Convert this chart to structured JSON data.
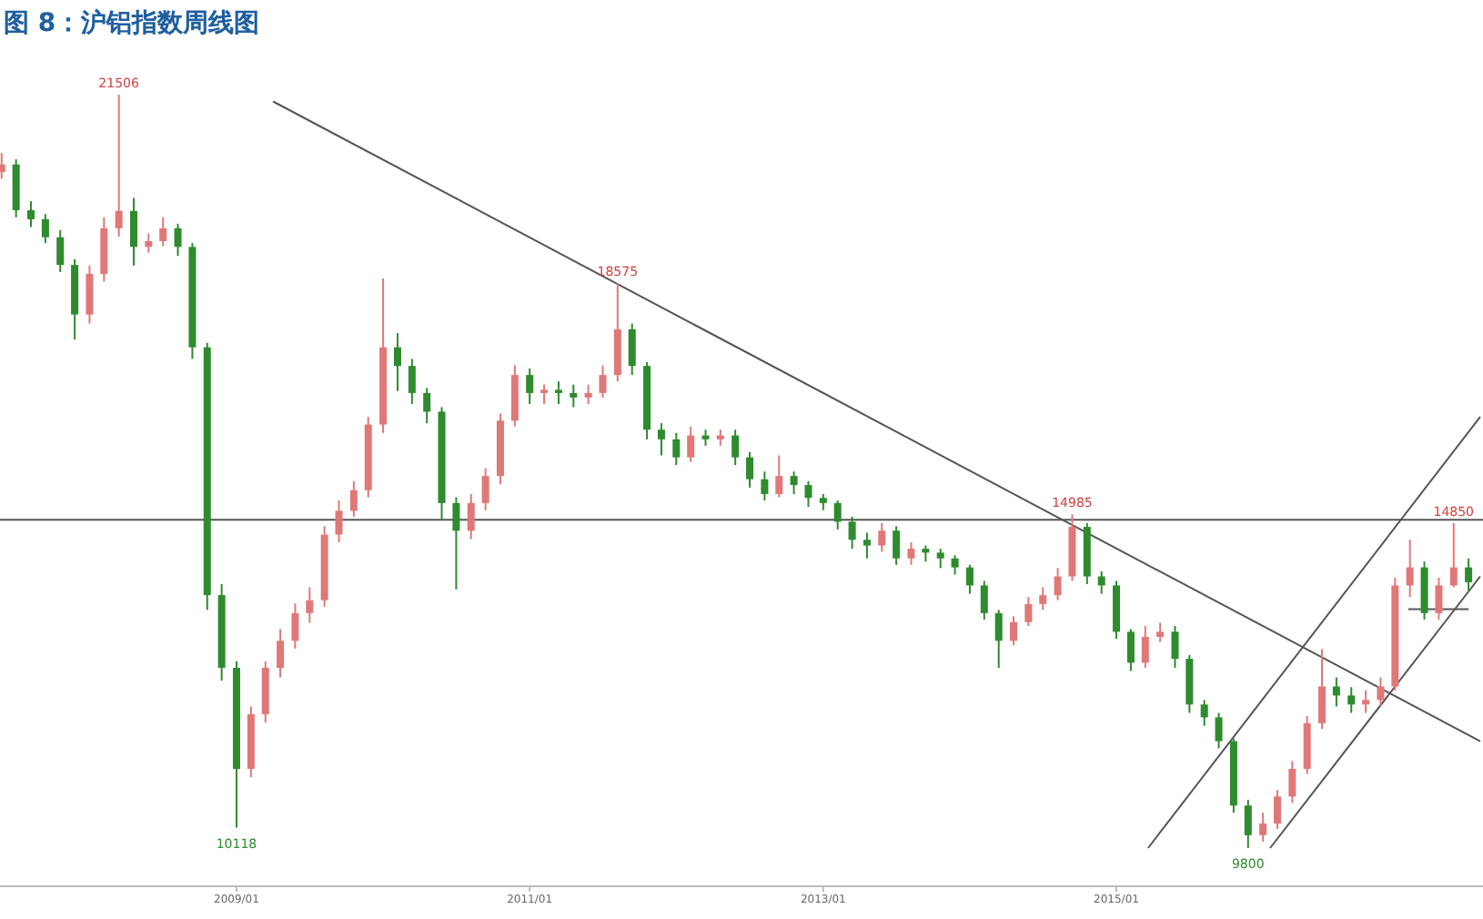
{
  "chart_data": {
    "type": "candlestick",
    "title": "图 8：沪铝指数周线图",
    "x": [
      "2007-05-27",
      "2007-07-02",
      "2007-08-08",
      "2007-09-13",
      "2007-10-20",
      "2007-11-25",
      "2008-01-01",
      "2008-02-06",
      "2008-03-14",
      "2008-04-20",
      "2008-05-27",
      "2008-07-02",
      "2008-08-08",
      "2008-09-13",
      "2008-10-20",
      "2008-11-25",
      "2009-01-01",
      "2009-02-06",
      "2009-03-14",
      "2009-04-20",
      "2009-05-27",
      "2009-07-02",
      "2009-08-08",
      "2009-09-13",
      "2009-10-20",
      "2009-11-25",
      "2010-01-01",
      "2010-02-06",
      "2010-03-14",
      "2010-04-20",
      "2010-05-27",
      "2010-07-02",
      "2010-08-08",
      "2010-09-13",
      "2010-10-20",
      "2010-11-25",
      "2011-01-01",
      "2011-02-06",
      "2011-03-14",
      "2011-04-20",
      "2011-05-27",
      "2011-07-02",
      "2011-08-08",
      "2011-09-13",
      "2011-10-20",
      "2011-11-25",
      "2012-01-01",
      "2012-02-06",
      "2012-03-14",
      "2012-04-20",
      "2012-05-27",
      "2012-07-02",
      "2012-08-08",
      "2012-09-13",
      "2012-10-20",
      "2012-11-25",
      "2013-01-01",
      "2013-02-06",
      "2013-03-14",
      "2013-04-20",
      "2013-05-27",
      "2013-07-02",
      "2013-08-08",
      "2013-09-13",
      "2013-10-20",
      "2013-11-25",
      "2014-01-01",
      "2014-02-06",
      "2014-03-14",
      "2014-04-20",
      "2014-05-27",
      "2014-07-02",
      "2014-08-08",
      "2014-09-13",
      "2014-10-20",
      "2014-11-25",
      "2015-01-01",
      "2015-02-06",
      "2015-03-14",
      "2015-04-20",
      "2015-05-27",
      "2015-07-02",
      "2015-08-08",
      "2015-09-13",
      "2015-10-20",
      "2015-11-25",
      "2016-01-01",
      "2016-02-06",
      "2016-03-14",
      "2016-04-20",
      "2016-05-27",
      "2016-07-02",
      "2016-08-08",
      "2016-09-13",
      "2016-10-20",
      "2016-11-25",
      "2017-01-01",
      "2017-02-06",
      "2017-03-14",
      "2017-04-20",
      "2017-05-27"
    ],
    "ohlc": [
      [
        20300,
        20600,
        20200,
        20420
      ],
      [
        20420,
        20500,
        19600,
        19710
      ],
      [
        19710,
        19850,
        19450,
        19570
      ],
      [
        19570,
        19650,
        19200,
        19290
      ],
      [
        19290,
        19400,
        18750,
        18860
      ],
      [
        18860,
        18950,
        17700,
        18090
      ],
      [
        18090,
        18850,
        17950,
        18720
      ],
      [
        18720,
        19600,
        18600,
        19430
      ],
      [
        19430,
        21506,
        19300,
        19700
      ],
      [
        19700,
        19900,
        18850,
        19140
      ],
      [
        19140,
        19350,
        19050,
        19230
      ],
      [
        19230,
        19600,
        19150,
        19430
      ],
      [
        19430,
        19500,
        19000,
        19140
      ],
      [
        19140,
        19200,
        17400,
        17580
      ],
      [
        17580,
        17650,
        13500,
        13730
      ],
      [
        13730,
        13900,
        12400,
        12600
      ],
      [
        12600,
        12700,
        10118,
        11030
      ],
      [
        11030,
        12000,
        10900,
        11880
      ],
      [
        11880,
        12700,
        11750,
        12600
      ],
      [
        12600,
        13200,
        12450,
        13020
      ],
      [
        13020,
        13600,
        12900,
        13450
      ],
      [
        13450,
        13850,
        13300,
        13650
      ],
      [
        13650,
        14800,
        13550,
        14670
      ],
      [
        14670,
        15200,
        14550,
        15040
      ],
      [
        15040,
        15500,
        14950,
        15360
      ],
      [
        15360,
        16500,
        15250,
        16380
      ],
      [
        16380,
        18650,
        16250,
        17580
      ],
      [
        17580,
        17800,
        16900,
        17290
      ],
      [
        17290,
        17400,
        16700,
        16870
      ],
      [
        16870,
        16950,
        16400,
        16580
      ],
      [
        16580,
        16650,
        14900,
        15160
      ],
      [
        15160,
        15250,
        13820,
        14730
      ],
      [
        14730,
        15300,
        14600,
        15160
      ],
      [
        15160,
        15700,
        15050,
        15580
      ],
      [
        15580,
        16550,
        15450,
        16440
      ],
      [
        16440,
        17300,
        16350,
        17150
      ],
      [
        17150,
        17250,
        16700,
        16870
      ],
      [
        16870,
        17000,
        16700,
        16920
      ],
      [
        16920,
        17050,
        16700,
        16870
      ],
      [
        16870,
        17000,
        16650,
        16800
      ],
      [
        16800,
        17000,
        16700,
        16870
      ],
      [
        16870,
        17300,
        16800,
        17150
      ],
      [
        17150,
        18575,
        17050,
        17860
      ],
      [
        17860,
        17950,
        17150,
        17290
      ],
      [
        17290,
        17350,
        16150,
        16300
      ],
      [
        16300,
        16400,
        15900,
        16150
      ],
      [
        16150,
        16250,
        15750,
        15870
      ],
      [
        15870,
        16350,
        15800,
        16210
      ],
      [
        16210,
        16300,
        16050,
        16150
      ],
      [
        16150,
        16300,
        16050,
        16210
      ],
      [
        16210,
        16300,
        15750,
        15870
      ],
      [
        15870,
        15950,
        15400,
        15530
      ],
      [
        15530,
        15650,
        15200,
        15300
      ],
      [
        15300,
        15900,
        15250,
        15580
      ],
      [
        15580,
        15650,
        15300,
        15440
      ],
      [
        15440,
        15500,
        15100,
        15240
      ],
      [
        15240,
        15300,
        15050,
        15160
      ],
      [
        15160,
        15200,
        14750,
        14870
      ],
      [
        14870,
        14950,
        14450,
        14590
      ],
      [
        14590,
        14700,
        14300,
        14500
      ],
      [
        14500,
        14850,
        14400,
        14730
      ],
      [
        14730,
        14800,
        14200,
        14300
      ],
      [
        14300,
        14550,
        14200,
        14450
      ],
      [
        14450,
        14500,
        14250,
        14390
      ],
      [
        14390,
        14450,
        14150,
        14300
      ],
      [
        14300,
        14350,
        14050,
        14160
      ],
      [
        14160,
        14200,
        13750,
        13880
      ],
      [
        13880,
        13950,
        13350,
        13450
      ],
      [
        13450,
        13500,
        12600,
        13020
      ],
      [
        13020,
        13400,
        12950,
        13310
      ],
      [
        13310,
        13700,
        13250,
        13590
      ],
      [
        13590,
        13850,
        13500,
        13730
      ],
      [
        13730,
        14150,
        13650,
        14020
      ],
      [
        14020,
        14985,
        13950,
        14790
      ],
      [
        14790,
        14850,
        13900,
        14020
      ],
      [
        14020,
        14100,
        13750,
        13880
      ],
      [
        13880,
        13950,
        13050,
        13160
      ],
      [
        13160,
        13200,
        12550,
        12680
      ],
      [
        12680,
        13250,
        12600,
        13080
      ],
      [
        13080,
        13300,
        13000,
        13160
      ],
      [
        13160,
        13250,
        12600,
        12740
      ],
      [
        12740,
        12800,
        11900,
        12030
      ],
      [
        12030,
        12100,
        11700,
        11830
      ],
      [
        11830,
        11900,
        11350,
        11460
      ],
      [
        11460,
        11500,
        10350,
        10460
      ],
      [
        10460,
        10550,
        9800,
        10000
      ],
      [
        10000,
        10350,
        9900,
        10180
      ],
      [
        10180,
        10700,
        10100,
        10600
      ],
      [
        10600,
        11150,
        10500,
        11030
      ],
      [
        11030,
        11850,
        10950,
        11740
      ],
      [
        11740,
        12890,
        11650,
        12310
      ],
      [
        12310,
        12450,
        12000,
        12170
      ],
      [
        12170,
        12300,
        11900,
        12030
      ],
      [
        12030,
        12250,
        11900,
        12100
      ],
      [
        12100,
        12450,
        12000,
        12310
      ],
      [
        12310,
        14000,
        12250,
        13880
      ],
      [
        13880,
        14590,
        13700,
        14160
      ],
      [
        14160,
        14250,
        13350,
        13450
      ],
      [
        13450,
        14000,
        13350,
        13880
      ],
      [
        13880,
        14850,
        13850,
        14160
      ],
      [
        14160,
        14300,
        13800,
        13930
      ]
    ],
    "colors": [
      "#e07878",
      "#2e8b2e",
      "#2e8b2e",
      "#2e8b2e",
      "#2e8b2e",
      "#2e8b2e",
      "#e07878",
      "#e07878",
      "#e07878",
      "#2e8b2e",
      "#e07878",
      "#e07878",
      "#2e8b2e",
      "#2e8b2e",
      "#2e8b2e",
      "#2e8b2e",
      "#2e8b2e",
      "#e07878",
      "#e07878",
      "#e07878",
      "#e07878",
      "#e07878",
      "#e07878",
      "#e07878",
      "#e07878",
      "#e07878",
      "#e07878",
      "#2e8b2e",
      "#2e8b2e",
      "#2e8b2e",
      "#2e8b2e",
      "#2e8b2e",
      "#e07878",
      "#e07878",
      "#e07878",
      "#e07878",
      "#2e8b2e",
      "#e07878",
      "#2e8b2e",
      "#2e8b2e",
      "#e07878",
      "#e07878",
      "#e07878",
      "#2e8b2e",
      "#2e8b2e",
      "#2e8b2e",
      "#2e8b2e",
      "#e07878",
      "#2e8b2e",
      "#e07878",
      "#2e8b2e",
      "#2e8b2e",
      "#2e8b2e",
      "#e07878",
      "#2e8b2e",
      "#2e8b2e",
      "#2e8b2e",
      "#2e8b2e",
      "#2e8b2e",
      "#2e8b2e",
      "#e07878",
      "#2e8b2e",
      "#e07878",
      "#2e8b2e",
      "#2e8b2e",
      "#2e8b2e",
      "#2e8b2e",
      "#2e8b2e",
      "#2e8b2e",
      "#e07878",
      "#e07878",
      "#e07878",
      "#e07878",
      "#e07878",
      "#2e8b2e",
      "#2e8b2e",
      "#2e8b2e",
      "#2e8b2e",
      "#e07878",
      "#e07878",
      "#2e8b2e",
      "#2e8b2e",
      "#2e8b2e",
      "#2e8b2e",
      "#2e8b2e",
      "#2e8b2e",
      "#e07878",
      "#e07878",
      "#e07878",
      "#e07878",
      "#e07878",
      "#2e8b2e",
      "#2e8b2e",
      "#e07878",
      "#e07878",
      "#e07878",
      "#e07878",
      "#2e8b2e",
      "#e07878",
      "#e07878",
      "#2e8b2e"
    ],
    "series": [
      {
        "type": "line",
        "color": "#555555",
        "x": [
          "2009-04-02",
          "2017-06-25"
        ],
        "values": [
          21400,
          11460
        ]
      },
      {
        "type": "line",
        "color": "#555555",
        "x": [
          "2016-01-19",
          "2017-06-25"
        ],
        "values": [
          9800,
          14020
        ]
      },
      {
        "type": "line",
        "color": "#555555",
        "x": [
          "2015-03-21",
          "2017-06-25"
        ],
        "values": [
          9800,
          16500
        ]
      },
      {
        "type": "line",
        "color": "#555555",
        "x": [
          "2016-12-28",
          "2017-05-27"
        ],
        "values": [
          13510,
          13510
        ]
      }
    ],
    "ref_lines": [
      {
        "axis": "y",
        "value": 14900,
        "color": "#555555"
      }
    ],
    "xlim": [
      "2007-05-23",
      "2017-07-02"
    ],
    "xticks": [
      {
        "value": "2009-01-01",
        "label": "2009/01"
      },
      {
        "value": "2011-01-01",
        "label": "2011/01"
      },
      {
        "value": "2013-01-01",
        "label": "2013/01"
      },
      {
        "value": "2015-01-01",
        "label": "2015/01"
      }
    ],
    "annotations": [
      {
        "text": "21506",
        "x": "2008-03-14",
        "y": 21506
      },
      {
        "text": "18575",
        "x": "2011-08-08",
        "y": 18575
      },
      {
        "text": "14985",
        "x": "2014-09-13",
        "y": 14985
      },
      {
        "text": "14850",
        "x": "2017-04-20",
        "y": 14850
      },
      {
        "text": "10118",
        "x": "2009-01-01",
        "y": 10118
      },
      {
        "text": "9800",
        "x": "2015-11-25",
        "y": 9800
      }
    ]
  }
}
